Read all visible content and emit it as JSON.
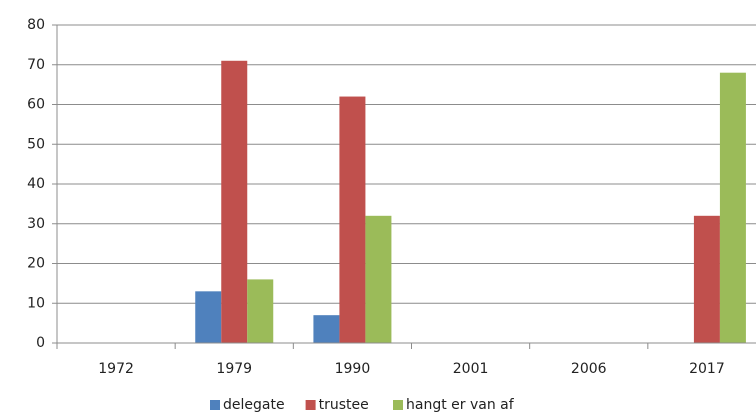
{
  "chart_data": {
    "type": "bar",
    "categories": [
      "1972",
      "1979",
      "1990",
      "2001",
      "2006",
      "2017"
    ],
    "series": [
      {
        "name": "delegate",
        "color": "#4f81bd",
        "values": [
          null,
          13,
          7,
          null,
          null,
          null
        ]
      },
      {
        "name": "trustee",
        "color": "#c0504d",
        "values": [
          null,
          71,
          62,
          null,
          null,
          32
        ]
      },
      {
        "name": "hangt er van af",
        "color": "#9bbb59",
        "values": [
          null,
          16,
          32,
          null,
          null,
          68
        ]
      }
    ],
    "ylim": [
      0,
      80
    ],
    "yticks": [
      0,
      10,
      20,
      30,
      40,
      50,
      60,
      70,
      80
    ],
    "grid": true,
    "legend": "bottom"
  }
}
